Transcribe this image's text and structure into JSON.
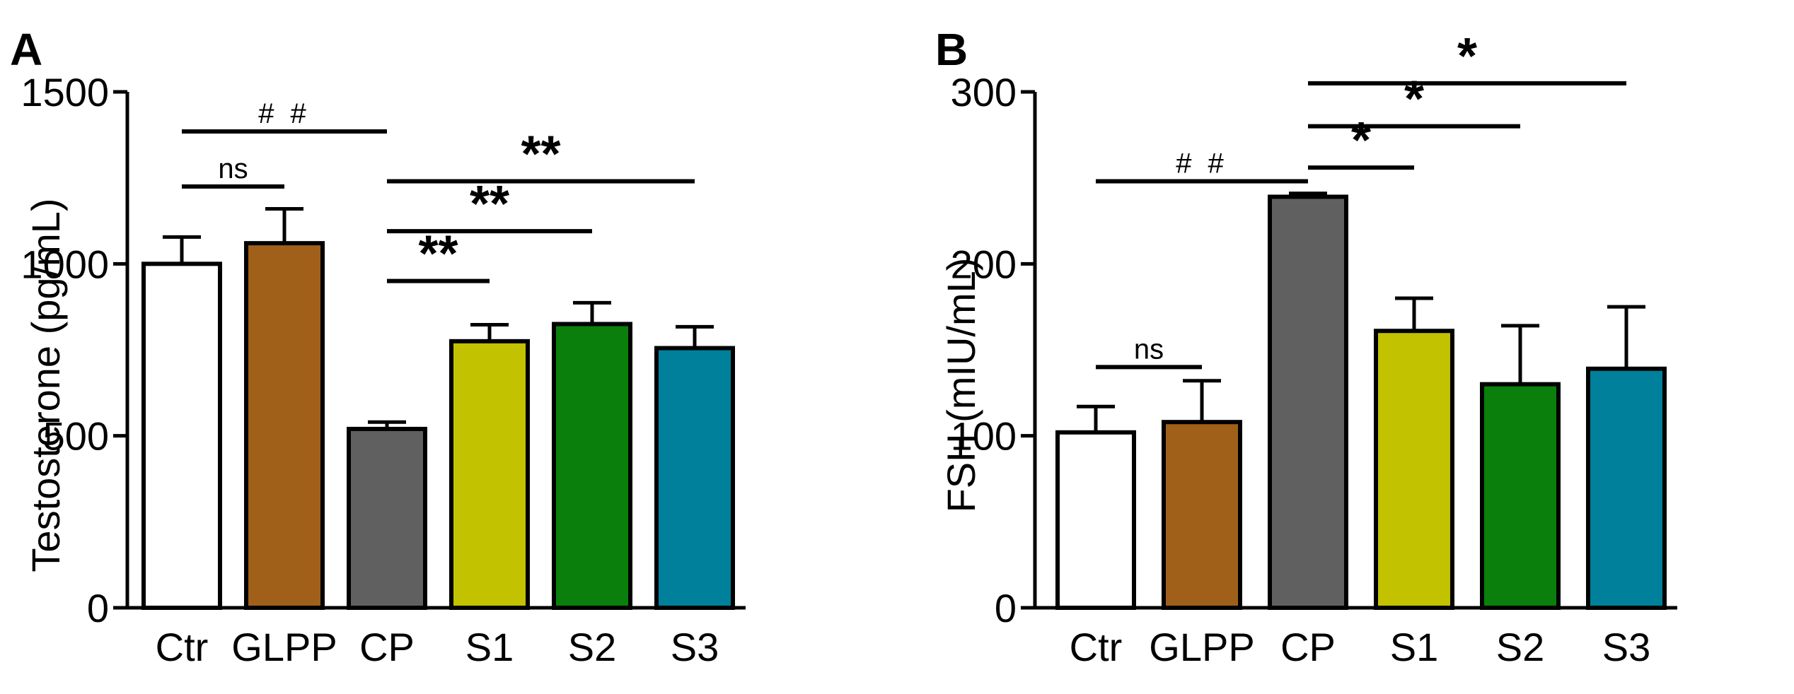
{
  "chart_data": [
    {
      "panel": "A",
      "type": "bar",
      "ylabel": "Testosterone (pg/mL)",
      "xlabel": "",
      "ylim": [
        0,
        1500
      ],
      "yticks": [
        0,
        500,
        1000,
        1500
      ],
      "categories": [
        "Ctr",
        "GLPP",
        "CP",
        "S1",
        "S2",
        "S3"
      ],
      "values": [
        1000,
        1060,
        520,
        775,
        825,
        755
      ],
      "errors": [
        78,
        100,
        20,
        48,
        62,
        62
      ],
      "colors": [
        "#ffffff",
        "#a0601a",
        "#606060",
        "#c2c200",
        "#0b7f0b",
        "#00809a"
      ],
      "significance": [
        {
          "from": "Ctr",
          "to": "CP",
          "label": "##",
          "level": 1385,
          "kind": "hash"
        },
        {
          "from": "Ctr",
          "to": "GLPP",
          "label": "ns",
          "level": 1225,
          "kind": "ns"
        },
        {
          "from": "CP",
          "to": "S3",
          "label": "**",
          "level": 1240,
          "kind": "star"
        },
        {
          "from": "CP",
          "to": "S2",
          "label": "**",
          "level": 1095,
          "kind": "star"
        },
        {
          "from": "CP",
          "to": "S1",
          "label": "**",
          "level": 950,
          "kind": "star"
        }
      ]
    },
    {
      "panel": "B",
      "type": "bar",
      "ylabel": "FSH (mIU/mL)",
      "xlabel": "",
      "ylim": [
        0,
        300
      ],
      "yticks": [
        0,
        100,
        200,
        300
      ],
      "categories": [
        "Ctr",
        "GLPP",
        "CP",
        "S1",
        "S2",
        "S3"
      ],
      "values": [
        102,
        108,
        239,
        161,
        130,
        139
      ],
      "errors": [
        15,
        24,
        2,
        19,
        34,
        36
      ],
      "colors": [
        "#ffffff",
        "#a0601a",
        "#606060",
        "#c2c200",
        "#0b7f0b",
        "#00809a"
      ],
      "significance": [
        {
          "from": "CP",
          "to": "S3",
          "label": "*",
          "level": 305,
          "kind": "star"
        },
        {
          "from": "CP",
          "to": "S2",
          "label": "*",
          "level": 280,
          "kind": "star"
        },
        {
          "from": "CP",
          "to": "S1",
          "label": "*",
          "level": 256,
          "kind": "star"
        },
        {
          "from": "Ctr",
          "to": "CP",
          "label": "##",
          "level": 248,
          "kind": "hash"
        },
        {
          "from": "Ctr",
          "to": "GLPP",
          "label": "ns",
          "level": 140,
          "kind": "ns"
        }
      ]
    }
  ]
}
